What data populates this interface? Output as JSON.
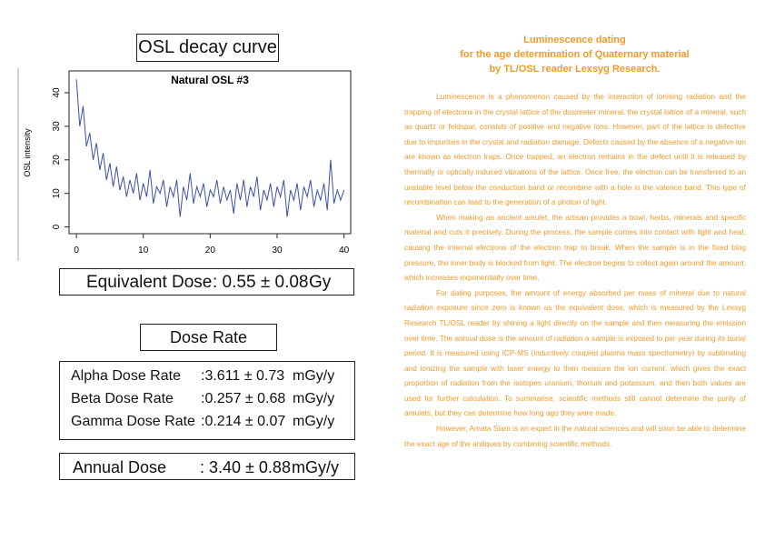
{
  "title": "OSL decay curve",
  "chart_data": {
    "type": "line",
    "title": "Natural OSL #3",
    "y_label": "OSL intensity",
    "color": "#3a4fa8",
    "x": [
      0,
      0.5,
      1,
      1.5,
      2,
      2.5,
      3,
      3.5,
      4,
      4.5,
      5,
      5.5,
      6,
      6.5,
      7,
      7.5,
      8,
      8.5,
      9,
      9.5,
      10,
      10.5,
      11,
      11.5,
      12,
      12.5,
      13,
      13.5,
      14,
      14.5,
      15,
      15.5,
      16,
      16.5,
      17,
      17.5,
      18,
      18.5,
      19,
      19.5,
      20,
      20.5,
      21,
      21.5,
      22,
      22.5,
      23,
      23.5,
      24,
      24.5,
      25,
      25.5,
      26,
      26.5,
      27,
      27.5,
      28,
      28.5,
      29,
      29.5,
      30,
      30.5,
      31,
      31.5,
      32,
      32.5,
      33,
      33.5,
      34,
      34.5,
      35,
      35.5,
      36,
      36.5,
      37,
      37.5,
      38,
      38.5,
      39,
      39.5,
      40
    ],
    "values": [
      44,
      30,
      36,
      24,
      28,
      20,
      25,
      17,
      22,
      14,
      19,
      12,
      18,
      11,
      15,
      9,
      14,
      10,
      16,
      8,
      13,
      9,
      17,
      7,
      12,
      10,
      14,
      6,
      12,
      9,
      14,
      3,
      12,
      8,
      16,
      7,
      12,
      9,
      13,
      6,
      11,
      9,
      14,
      7,
      12,
      8,
      11,
      4,
      13,
      8,
      14,
      6,
      12,
      9,
      15,
      5,
      11,
      8,
      13,
      6,
      12,
      9,
      14,
      3,
      11,
      8,
      13,
      5,
      12,
      9,
      14,
      6,
      11,
      8,
      13,
      5,
      20,
      7,
      11,
      8,
      11
    ],
    "xlim": [
      -1.1,
      41
    ],
    "ylim": [
      -2,
      46.5
    ],
    "xticks": [
      0,
      10,
      20,
      30,
      40
    ],
    "yticks": [
      0,
      10,
      20,
      30,
      40
    ]
  },
  "equivalent_dose": {
    "label": "Equivalent Dose",
    "value": ": 0.55 ± 0.08",
    "unit": "Gy"
  },
  "dose_rate_title": "Dose Rate",
  "dose_rates": [
    {
      "label": "Alpha Dose Rate",
      "value": ":3.611 ± 0.73",
      "unit": "mGy/y"
    },
    {
      "label": "Beta Dose Rate",
      "value": ":0.257 ± 0.68",
      "unit": "mGy/y"
    },
    {
      "label": "Gamma Dose Rate",
      "value": ":0.214 ± 0.07",
      "unit": "mGy/y"
    }
  ],
  "annual_dose": {
    "label": "Annual Dose",
    "value": ": 3.40 ± 0.88",
    "unit": "mGy/y"
  },
  "article": {
    "title": [
      "Luminescence dating",
      "for the age determination of Quaternary material",
      "by TL/OSL reader Lexsyg Research."
    ],
    "paragraphs": [
      "Luminescence is a phenomenon caused by the interaction of ionising radiation and the trapping of electrons in the crystal lattice of the dosimeter mineral. the crystal lattice of a mineral, such as quartz or feldspar, consists of positive and negative ions. However, part of the lattice is defective due to impurities in the crystal and radiation damage. Defects caused by the absence of a negative ion are known as electron traps. Once trapped, an electron remains in the defect until it is released by thermally or optically induced vibrations of the lattice. Once free, the electron can be transferred to an unstable level below the conduction band or recombine with a hole in the valence band. This type of recombination can lead to the generation of a photon of light.",
      "When making an ancient amulet, the artisan provides a bowl, herbs, minerals and specific material and cuts it precisely. During the process, the sample comes into contact with light and heat, causing the internal electrons of the electron trap to break. When the sample is in the fixed blog pressure, the inner body is blocked from light. The electron begins to collect again around the amount, which increases exponentially over time.",
      "For dating purposes, the amount of energy absorbed per mass of mineral due to natural radiation exposure since zero is known as the equivalent dose, which is measured by the Lexsyg Research TL/OSL reader by shining a light directly on the sample and then measuring the emission over time. The annual dose is the amount of radiation a sample is exposed to per year during its burial period. It is measured using ICP-MS (inductively coupled plasma mass spectrometry) by sublimating and ionizing the sample with laser energy to then measure the ion current, which gives the exact proportion of radiation from the isotopes uranium, thorium and potassium, and then both values are used for further calculation. To summarise, scientific methods still cannot determine the purity of amulets, but they can determine how long ago they were made.",
      "However, Amata Siam is an expert in the natural sciences and will soon be able to determine the exact age of the antiques by combining scientific methods."
    ]
  }
}
